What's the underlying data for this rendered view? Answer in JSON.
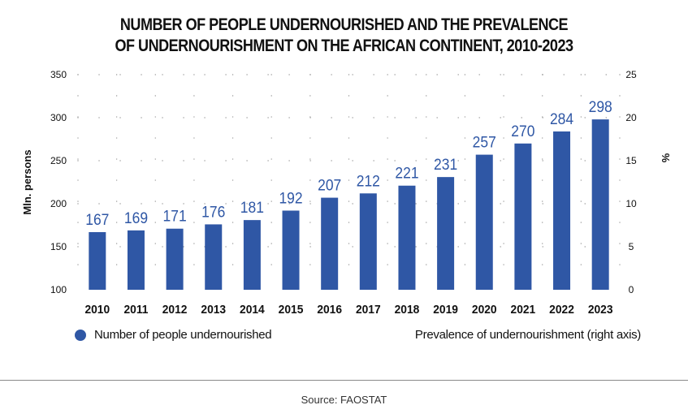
{
  "title": {
    "line1": "NUMBER OF PEOPLE UNDERNOURISHED AND THE PREVALENCE",
    "line2": "OF UNDERNOURISHMENT ON THE AFRICAN CONTINENT, 2010-2023"
  },
  "colors": {
    "bar": "#2f57a5",
    "label": "#2f57a5",
    "text": "#111111"
  },
  "chart_data": {
    "type": "bar",
    "categories": [
      "2010",
      "2011",
      "2012",
      "2013",
      "2014",
      "2015",
      "2016",
      "2017",
      "2018",
      "2019",
      "2020",
      "2021",
      "2022",
      "2023"
    ],
    "series": [
      {
        "name": "Number of people undernourished",
        "axis": "left",
        "values": [
          167,
          169,
          171,
          176,
          181,
          192,
          207,
          212,
          221,
          231,
          257,
          270,
          284,
          298
        ]
      }
    ],
    "value_labels": [
      "167",
      "169",
      "171",
      "176",
      "181",
      "192",
      "207",
      "212",
      "221",
      "231",
      "257",
      "270",
      "284",
      "298"
    ],
    "ylabel": "Mln. persons",
    "ylim": [
      100,
      350
    ],
    "yticks": [
      "100",
      "150",
      "200",
      "250",
      "300",
      "350"
    ],
    "y2label": "%",
    "y2lim": [
      0,
      25
    ],
    "y2ticks": [
      "0",
      "5",
      "10",
      "15",
      "20",
      "25"
    ],
    "grid": "dotted",
    "legend": "bottom"
  },
  "legend": {
    "left": "Number of people undernourished",
    "right": "Prevalence of undernourishment (right axis)"
  },
  "source": "Source: FAOSTAT"
}
